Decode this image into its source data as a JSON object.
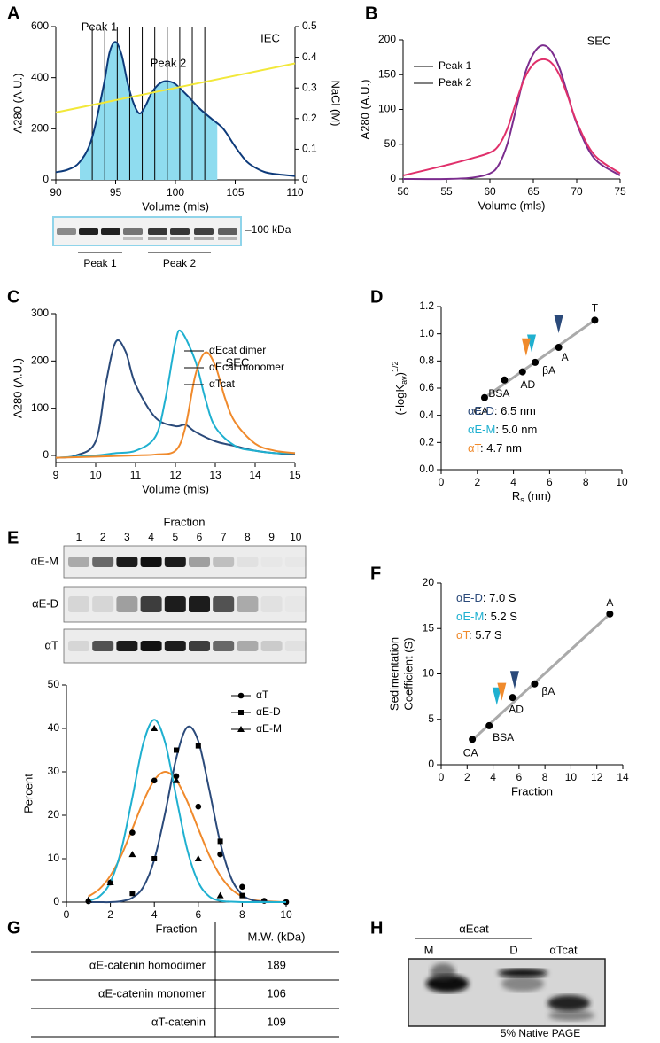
{
  "chart_data": [
    {
      "type": "line",
      "panel": "A",
      "annotations": [
        "Peak 1",
        "Peak 2",
        "IEC"
      ],
      "xlabel": "Volume (mls)",
      "ylabel": "A280 (A.U.)",
      "y2label": "NaCl (M)",
      "xlim": [
        90,
        110
      ],
      "xticks": [
        90,
        95,
        100,
        105,
        110
      ],
      "ylim": [
        0,
        600
      ],
      "yticks": [
        0,
        200,
        400,
        600
      ],
      "y2lim": [
        0,
        0.5
      ],
      "y2ticks": [
        0,
        0.1,
        0.2,
        0.3,
        0.4,
        0.5
      ],
      "series": [
        {
          "color": "#0d3a7a",
          "fill": "#8fdcef",
          "fill_x": [
            92,
            103.5
          ],
          "x": [
            90,
            91,
            92,
            93,
            94,
            94.5,
            95,
            95.5,
            96,
            96.5,
            97,
            97.5,
            98,
            98.5,
            99,
            99.5,
            100,
            101,
            102,
            103,
            104,
            105,
            106,
            107,
            108,
            110
          ],
          "values": [
            30,
            40,
            70,
            160,
            370,
            500,
            540,
            490,
            380,
            300,
            260,
            290,
            340,
            370,
            385,
            385,
            375,
            330,
            280,
            240,
            200,
            130,
            70,
            40,
            25,
            15
          ]
        },
        {
          "color": "#f2e83a",
          "axis": "y2",
          "x": [
            90,
            110
          ],
          "values": [
            0.22,
            0.38
          ]
        }
      ]
    },
    {
      "type": "line",
      "panel": "B",
      "annotations": [
        "SEC"
      ],
      "legend": "upper left",
      "xlabel": "Volume (mls)",
      "ylabel": "A280 (A.U.)",
      "xlim": [
        50,
        75
      ],
      "xticks": [
        50,
        55,
        60,
        65,
        70,
        75
      ],
      "ylim": [
        0,
        200
      ],
      "yticks": [
        0,
        50,
        100,
        150,
        200
      ],
      "series": [
        {
          "name": "Peak 1",
          "color": "#7b2d8e",
          "x": [
            50,
            55,
            58,
            60,
            61,
            62,
            63,
            64,
            65,
            66,
            67,
            68,
            69,
            70,
            72,
            75
          ],
          "values": [
            0,
            0,
            2,
            8,
            20,
            50,
            100,
            150,
            180,
            192,
            185,
            160,
            120,
            80,
            30,
            5
          ]
        },
        {
          "name": "Peak 2",
          "color": "#e0306b",
          "x": [
            50,
            55,
            58,
            60,
            61,
            62,
            63,
            64,
            65,
            66,
            67,
            68,
            69,
            70,
            72,
            75
          ],
          "values": [
            5,
            20,
            30,
            38,
            48,
            72,
            110,
            145,
            165,
            172,
            168,
            150,
            118,
            82,
            35,
            8
          ]
        }
      ]
    },
    {
      "type": "line",
      "panel": "C",
      "annotations": [
        "SEC"
      ],
      "legend": "center right",
      "xlabel": "Volume (mls)",
      "ylabel": "A280 (A.U.)",
      "xlim": [
        9,
        15
      ],
      "xticks": [
        9,
        10,
        11,
        12,
        13,
        14,
        15
      ],
      "ylim": [
        -15,
        300
      ],
      "yticks": [
        0,
        100,
        200,
        300
      ],
      "series": [
        {
          "name": "αEcat dimer",
          "color": "#2b4a7a",
          "x": [
            9,
            9.5,
            10,
            10.25,
            10.5,
            10.75,
            11,
            11.5,
            12,
            12.25,
            12.5,
            13,
            13.5,
            14,
            14.5,
            15
          ],
          "values": [
            -5,
            0,
            30,
            150,
            240,
            220,
            150,
            80,
            62,
            65,
            50,
            30,
            20,
            10,
            5,
            2
          ]
        },
        {
          "name": "αEcat monomer",
          "color": "#1fb0d0",
          "x": [
            9,
            10,
            10.5,
            11,
            11.5,
            11.75,
            12,
            12.15,
            12.5,
            12.75,
            13,
            13.5,
            14,
            14.5,
            15
          ],
          "values": [
            -5,
            0,
            5,
            10,
            40,
            120,
            240,
            262,
            200,
            120,
            60,
            20,
            10,
            5,
            5
          ]
        },
        {
          "name": "αTcat",
          "color": "#f08a2c",
          "x": [
            9,
            11,
            11.5,
            12,
            12.25,
            12.5,
            12.75,
            13,
            13.25,
            13.5,
            14,
            14.5,
            15
          ],
          "values": [
            -5,
            0,
            2,
            10,
            60,
            170,
            218,
            190,
            120,
            70,
            25,
            10,
            5
          ]
        }
      ]
    },
    {
      "type": "scatter",
      "panel": "D",
      "xlabel": {
        "main": "R",
        "sub": "s",
        "rest": " (nm)"
      },
      "ylabel": {
        "main": "(-logK",
        "sub": "av",
        "close": ")",
        "sup": "1/2"
      },
      "xlim": [
        0,
        10
      ],
      "xticks": [
        0,
        2,
        4,
        6,
        8,
        10
      ],
      "ylim": [
        0,
        1.2
      ],
      "yticks": [
        {
          "value": 0,
          "label": "0.0"
        },
        0.2,
        0.4,
        0.6,
        0.8,
        {
          "value": 1,
          "label": "1.0"
        },
        1.2
      ],
      "x": [
        2.4,
        3.5,
        4.5,
        5.2,
        6.5,
        8.5
      ],
      "values": [
        0.53,
        0.66,
        0.72,
        0.79,
        0.9,
        1.1
      ],
      "labels": [
        "CA",
        "BSA",
        "AD",
        "βA",
        "A",
        "T"
      ],
      "point_color": "#000000",
      "fit": {
        "color": "#aaaaaa",
        "x": [
          2.3,
          8.6
        ],
        "values": [
          0.52,
          1.11
        ]
      },
      "marker_axis": "x",
      "markers": [
        {
          "name": "αE-D",
          "label": ": 6.5 nm",
          "value": 6.5,
          "color": "#2b4a7a"
        },
        {
          "name": "αE-M",
          "label": ": 5.0 nm",
          "value": 5.0,
          "color": "#1fb0d0"
        },
        {
          "name": "αT",
          "label": ": 4.7 nm",
          "value": 4.7,
          "color": "#f08a2c"
        }
      ]
    },
    {
      "type": "line",
      "legend": "upper right",
      "marker_color": "#000000",
      "xlabel": "Fraction",
      "ylabel": "Percent",
      "xlim": [
        0,
        10
      ],
      "xticks": [
        0,
        2,
        4,
        6,
        8,
        10
      ],
      "ylim": [
        0,
        50
      ],
      "yticks": [
        0,
        10,
        20,
        30,
        40,
        50
      ],
      "fit_x": [
        1,
        1.5,
        2,
        2.5,
        3,
        3.5,
        4,
        4.5,
        5,
        5.5,
        6,
        6.5,
        7,
        7.5,
        8,
        8.5,
        9,
        9.5,
        10
      ],
      "series": [
        {
          "name": "αT",
          "color": "#f08a2c",
          "marker": "circle",
          "x": [
            1,
            2,
            3,
            4,
            5,
            6,
            7,
            8,
            9,
            10
          ],
          "values": [
            0.2,
            4.5,
            16,
            28,
            29,
            22,
            11,
            3.5,
            0.3,
            0
          ],
          "fit_values": [
            1.3,
            3.0,
            6.1,
            10.8,
            16.9,
            23.2,
            28.1,
            30,
            28.1,
            23.2,
            16.9,
            10.8,
            6.1,
            3.0,
            1.3,
            0.5,
            0.2,
            0.1,
            0
          ]
        },
        {
          "name": "αE-D",
          "color": "#2b4a7a",
          "marker": "square",
          "x": [
            3,
            4,
            5,
            6,
            7,
            8
          ],
          "values": [
            2,
            10,
            35,
            36,
            14,
            1.5
          ],
          "fit_values": [
            0,
            0,
            0,
            0.2,
            1.0,
            3.5,
            9.8,
            20.7,
            33.2,
            40.3,
            37.1,
            25.9,
            13.7,
            5.5,
            1.7,
            0.4,
            0.1,
            0,
            0
          ]
        },
        {
          "name": "αE-M",
          "color": "#1fb0d0",
          "marker": "triangle",
          "x": [
            1,
            2,
            3,
            4,
            5,
            6,
            7
          ],
          "values": [
            0.5,
            4.5,
            11,
            40,
            28,
            10,
            1.5
          ],
          "fit_values": [
            0.3,
            1.3,
            4.6,
            12.1,
            24.1,
            36.6,
            42,
            36.6,
            24.1,
            12.1,
            4.6,
            1.3,
            0.3,
            0.1,
            0,
            0,
            0,
            0,
            0
          ]
        }
      ]
    },
    {
      "type": "scatter",
      "panel": "F",
      "xlabel": "Fraction",
      "ylabel": [
        "Sedimentation",
        "Coefficient (S)"
      ],
      "xlim": [
        0,
        14
      ],
      "xticks": [
        0,
        2,
        4,
        6,
        8,
        10,
        12,
        14
      ],
      "ylim": [
        0,
        20
      ],
      "yticks": [
        0,
        5,
        10,
        15,
        20
      ],
      "x": [
        2.4,
        3.7,
        5.5,
        7.2,
        13
      ],
      "values": [
        2.8,
        4.3,
        7.4,
        8.9,
        16.6
      ],
      "labels": [
        "CA",
        "BSA",
        "AD",
        "βA",
        "A"
      ],
      "point_color": "#000000",
      "fit": {
        "color": "#aaaaaa",
        "x": [
          2.3,
          13
        ],
        "values": [
          2.6,
          16.6
        ]
      },
      "marker_axis": "y",
      "markers": [
        {
          "name": "αE-D",
          "label": ": 7.0 S",
          "value": 7.0,
          "color": "#2b4a7a"
        },
        {
          "name": "αE-M",
          "label": ": 5.2 S",
          "value": 5.2,
          "color": "#1fb0d0"
        },
        {
          "name": "αT",
          "label": ": 5.7 S",
          "value": 5.7,
          "color": "#f08a2c"
        }
      ]
    }
  ],
  "gel_A": {
    "marker": "–100 kDa",
    "groups": [
      "Peak 1",
      "Peak 2"
    ]
  },
  "gel_E": {
    "panel": "E",
    "title": "Fraction",
    "lanes": [
      "1",
      "2",
      "3",
      "4",
      "5",
      "6",
      "7",
      "8",
      "9",
      "10"
    ],
    "rows": [
      "αE-M",
      "αE-D",
      "αT"
    ]
  },
  "table_G": {
    "panel": "G",
    "header": "M.W. (kDa)",
    "rows": [
      [
        "αE-catenin homodimer",
        "189"
      ],
      [
        "αE-catenin monomer",
        "106"
      ],
      [
        "αT-catenin",
        "109"
      ]
    ]
  },
  "gel_H": {
    "panel": "H",
    "group": "αEcat",
    "lanes": [
      "M",
      "D",
      "αTcat"
    ],
    "caption": "5% Native PAGE"
  }
}
